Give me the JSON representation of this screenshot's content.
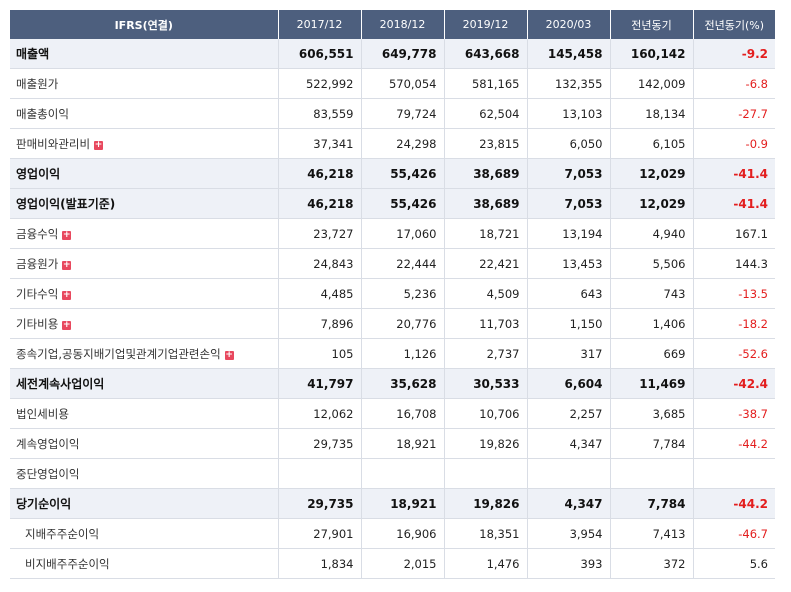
{
  "header": {
    "columns": [
      "IFRS(연결)",
      "2017/12",
      "2018/12",
      "2019/12",
      "2020/03",
      "전년동기",
      "전년동기(%)"
    ]
  },
  "rows": [
    {
      "label": "매출액",
      "bold": true,
      "expand": false,
      "indent": false,
      "values": [
        "606,551",
        "649,778",
        "643,668",
        "145,458",
        "160,142",
        "-9.2"
      ],
      "neg": true
    },
    {
      "label": "매출원가",
      "bold": false,
      "expand": false,
      "indent": false,
      "values": [
        "522,992",
        "570,054",
        "581,165",
        "132,355",
        "142,009",
        "-6.8"
      ],
      "neg": true
    },
    {
      "label": "매출총이익",
      "bold": false,
      "expand": false,
      "indent": false,
      "values": [
        "83,559",
        "79,724",
        "62,504",
        "13,103",
        "18,134",
        "-27.7"
      ],
      "neg": true
    },
    {
      "label": "판매비와관리비",
      "bold": false,
      "expand": true,
      "indent": false,
      "values": [
        "37,341",
        "24,298",
        "23,815",
        "6,050",
        "6,105",
        "-0.9"
      ],
      "neg": true
    },
    {
      "label": "영업이익",
      "bold": true,
      "expand": false,
      "indent": false,
      "values": [
        "46,218",
        "55,426",
        "38,689",
        "7,053",
        "12,029",
        "-41.4"
      ],
      "neg": true
    },
    {
      "label": "영업이익(발표기준)",
      "bold": true,
      "expand": false,
      "indent": false,
      "values": [
        "46,218",
        "55,426",
        "38,689",
        "7,053",
        "12,029",
        "-41.4"
      ],
      "neg": true
    },
    {
      "label": "금융수익",
      "bold": false,
      "expand": true,
      "indent": false,
      "values": [
        "23,727",
        "17,060",
        "18,721",
        "13,194",
        "4,940",
        "167.1"
      ],
      "neg": false
    },
    {
      "label": "금융원가",
      "bold": false,
      "expand": true,
      "indent": false,
      "values": [
        "24,843",
        "22,444",
        "22,421",
        "13,453",
        "5,506",
        "144.3"
      ],
      "neg": false
    },
    {
      "label": "기타수익",
      "bold": false,
      "expand": true,
      "indent": false,
      "values": [
        "4,485",
        "5,236",
        "4,509",
        "643",
        "743",
        "-13.5"
      ],
      "neg": true
    },
    {
      "label": "기타비용",
      "bold": false,
      "expand": true,
      "indent": false,
      "values": [
        "7,896",
        "20,776",
        "11,703",
        "1,150",
        "1,406",
        "-18.2"
      ],
      "neg": true
    },
    {
      "label": "종속기업,공동지배기업및관계기업관련손익",
      "bold": false,
      "expand": true,
      "indent": false,
      "values": [
        "105",
        "1,126",
        "2,737",
        "317",
        "669",
        "-52.6"
      ],
      "neg": true
    },
    {
      "label": "세전계속사업이익",
      "bold": true,
      "expand": false,
      "indent": false,
      "values": [
        "41,797",
        "35,628",
        "30,533",
        "6,604",
        "11,469",
        "-42.4"
      ],
      "neg": true
    },
    {
      "label": "법인세비용",
      "bold": false,
      "expand": false,
      "indent": false,
      "values": [
        "12,062",
        "16,708",
        "10,706",
        "2,257",
        "3,685",
        "-38.7"
      ],
      "neg": true
    },
    {
      "label": "계속영업이익",
      "bold": false,
      "expand": false,
      "indent": false,
      "values": [
        "29,735",
        "18,921",
        "19,826",
        "4,347",
        "7,784",
        "-44.2"
      ],
      "neg": true
    },
    {
      "label": "중단영업이익",
      "bold": false,
      "expand": false,
      "indent": false,
      "values": [
        "",
        "",
        "",
        "",
        "",
        ""
      ],
      "neg": false
    },
    {
      "label": "당기순이익",
      "bold": true,
      "expand": false,
      "indent": false,
      "values": [
        "29,735",
        "18,921",
        "19,826",
        "4,347",
        "7,784",
        "-44.2"
      ],
      "neg": true
    },
    {
      "label": "지배주주순이익",
      "bold": false,
      "expand": false,
      "indent": true,
      "values": [
        "27,901",
        "16,906",
        "18,351",
        "3,954",
        "7,413",
        "-46.7"
      ],
      "neg": true
    },
    {
      "label": "비지배주주순이익",
      "bold": false,
      "expand": false,
      "indent": true,
      "values": [
        "1,834",
        "2,015",
        "1,476",
        "393",
        "372",
        "5.6"
      ],
      "neg": false
    }
  ],
  "colors": {
    "header_bg": "#4d5f7e",
    "negative": "#e31e1e",
    "bold_row_bg": "#eef1f7",
    "expand_icon": "#e8485e"
  },
  "icons": {
    "expand": "plus-icon"
  }
}
